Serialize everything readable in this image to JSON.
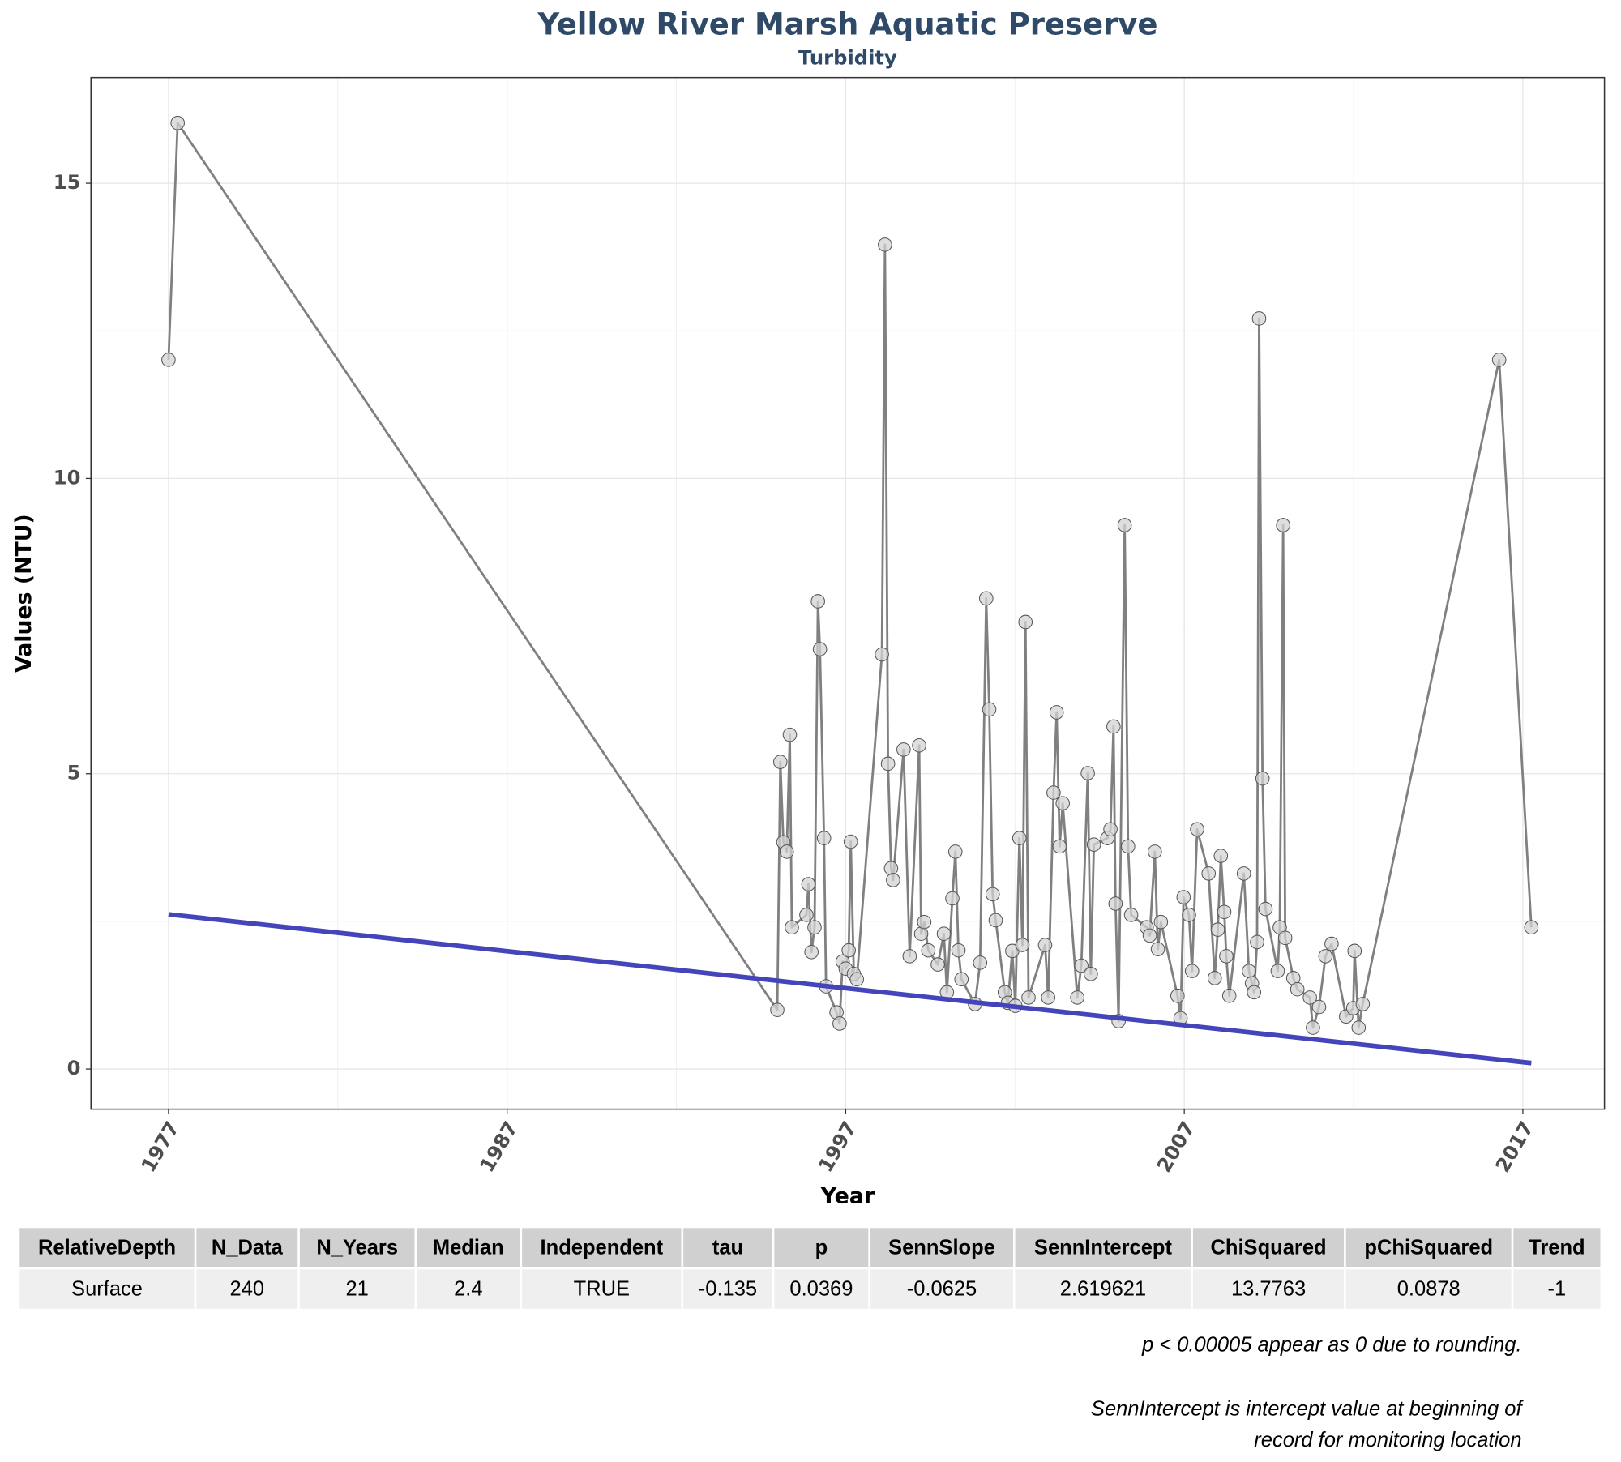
{
  "chart_data": {
    "type": "line",
    "title": "Yellow River Marsh Aquatic Preserve",
    "subtitle": "Turbidity",
    "x_label": "Year",
    "y_label": "Values (NTU)",
    "xlim": [
      1974.71,
      2019.41
    ],
    "ylim": [
      -0.68,
      16.79
    ],
    "xticks": [
      1977,
      1987,
      1997,
      2007,
      2017
    ],
    "yticks": [
      0,
      5,
      10,
      15
    ],
    "x_minor_ticks": [
      1982,
      1992,
      2002,
      2012
    ],
    "y_minor_ticks": [
      2.5,
      7.5,
      12.5
    ],
    "grid": true,
    "series": [
      {
        "color": "#808080",
        "marker_color": "#d3d3d3",
        "x": [
          1977.0,
          1977.27,
          1994.98,
          1995.07,
          1995.16,
          1995.26,
          1995.35,
          1995.41,
          1995.84,
          1995.9,
          1995.99,
          1996.08,
          1996.18,
          1996.24,
          1996.36,
          1996.42,
          1996.73,
          1996.82,
          1996.91,
          1997.0,
          1997.09,
          1997.15,
          1997.24,
          1997.33,
          1998.07,
          1998.16,
          1998.25,
          1998.34,
          1998.4,
          1998.71,
          1998.89,
          1999.17,
          1999.23,
          1999.32,
          1999.44,
          1999.72,
          1999.9,
          1999.99,
          2000.15,
          2000.24,
          2000.33,
          2000.42,
          2000.82,
          2000.97,
          2001.15,
          2001.24,
          2001.34,
          2001.43,
          2001.7,
          2001.79,
          2001.92,
          2002.01,
          2002.13,
          2002.22,
          2002.31,
          2002.4,
          2002.89,
          2002.98,
          2003.14,
          2003.23,
          2003.32,
          2003.41,
          2003.84,
          2003.96,
          2004.15,
          2004.24,
          2004.33,
          2004.73,
          2004.82,
          2004.91,
          2004.97,
          2005.06,
          2005.24,
          2005.34,
          2005.43,
          2005.89,
          2005.98,
          2006.13,
          2006.22,
          2006.31,
          2006.8,
          2006.89,
          2006.98,
          2007.14,
          2007.23,
          2007.38,
          2007.72,
          2007.9,
          2007.99,
          2008.08,
          2008.18,
          2008.24,
          2008.33,
          2008.76,
          2008.91,
          2009.0,
          2009.06,
          2009.15,
          2009.21,
          2009.31,
          2009.4,
          2009.76,
          2009.82,
          2009.92,
          2009.98,
          2010.22,
          2010.34,
          2010.71,
          2010.8,
          2010.98,
          2011.17,
          2011.35,
          2011.78,
          2011.99,
          2012.03,
          2012.15,
          2012.27,
          2016.3,
          2017.25
        ],
        "values": [
          12.01,
          16.02,
          1.0,
          5.2,
          3.84,
          3.68,
          5.66,
          2.4,
          2.61,
          3.13,
          1.98,
          2.4,
          7.92,
          7.11,
          3.91,
          1.4,
          0.96,
          0.77,
          1.82,
          1.7,
          2.01,
          3.85,
          1.61,
          1.52,
          7.02,
          13.96,
          5.17,
          3.4,
          3.2,
          5.41,
          1.91,
          5.48,
          2.29,
          2.49,
          2.01,
          1.77,
          2.29,
          1.3,
          2.89,
          3.68,
          2.01,
          1.52,
          1.1,
          1.8,
          7.97,
          6.09,
          2.96,
          2.52,
          1.3,
          1.12,
          2.0,
          1.07,
          3.91,
          2.1,
          7.57,
          1.21,
          2.1,
          1.21,
          4.68,
          6.04,
          3.77,
          4.5,
          1.21,
          1.75,
          5.01,
          1.61,
          3.8,
          3.91,
          4.06,
          5.8,
          2.8,
          0.81,
          9.21,
          3.77,
          2.61,
          2.4,
          2.26,
          3.68,
          2.03,
          2.49,
          1.24,
          0.86,
          2.91,
          2.61,
          1.66,
          4.06,
          3.31,
          1.54,
          2.36,
          3.61,
          2.66,
          1.91,
          1.24,
          3.31,
          1.66,
          1.45,
          1.3,
          2.15,
          12.71,
          4.92,
          2.71,
          1.66,
          2.4,
          9.21,
          2.22,
          1.54,
          1.35,
          1.21,
          0.7,
          1.05,
          1.91,
          2.12,
          0.89,
          1.03,
          2.0,
          0.7,
          1.1,
          12.01,
          2.4
        ]
      },
      {
        "color": "#4444bb",
        "x": [
          1977.0,
          2017.25
        ],
        "values": [
          2.62,
          0.1
        ]
      }
    ]
  },
  "table": {
    "columns": [
      "RelativeDepth",
      "N_Data",
      "N_Years",
      "Median",
      "Independent",
      "tau",
      "p",
      "SennSlope",
      "SennIntercept",
      "ChiSquared",
      "pChiSquared",
      "Trend"
    ],
    "rows": [
      [
        "Surface",
        "240",
        "21",
        "2.4",
        "TRUE",
        "-0.135",
        "0.0369",
        "-0.0625",
        "2.619621",
        "13.7763",
        "0.0878",
        "-1"
      ]
    ]
  },
  "notes": [
    "p < 0.00005 appear as 0 due to rounding.",
    "SennIntercept is intercept value at beginning of",
    "record for monitoring location"
  ]
}
